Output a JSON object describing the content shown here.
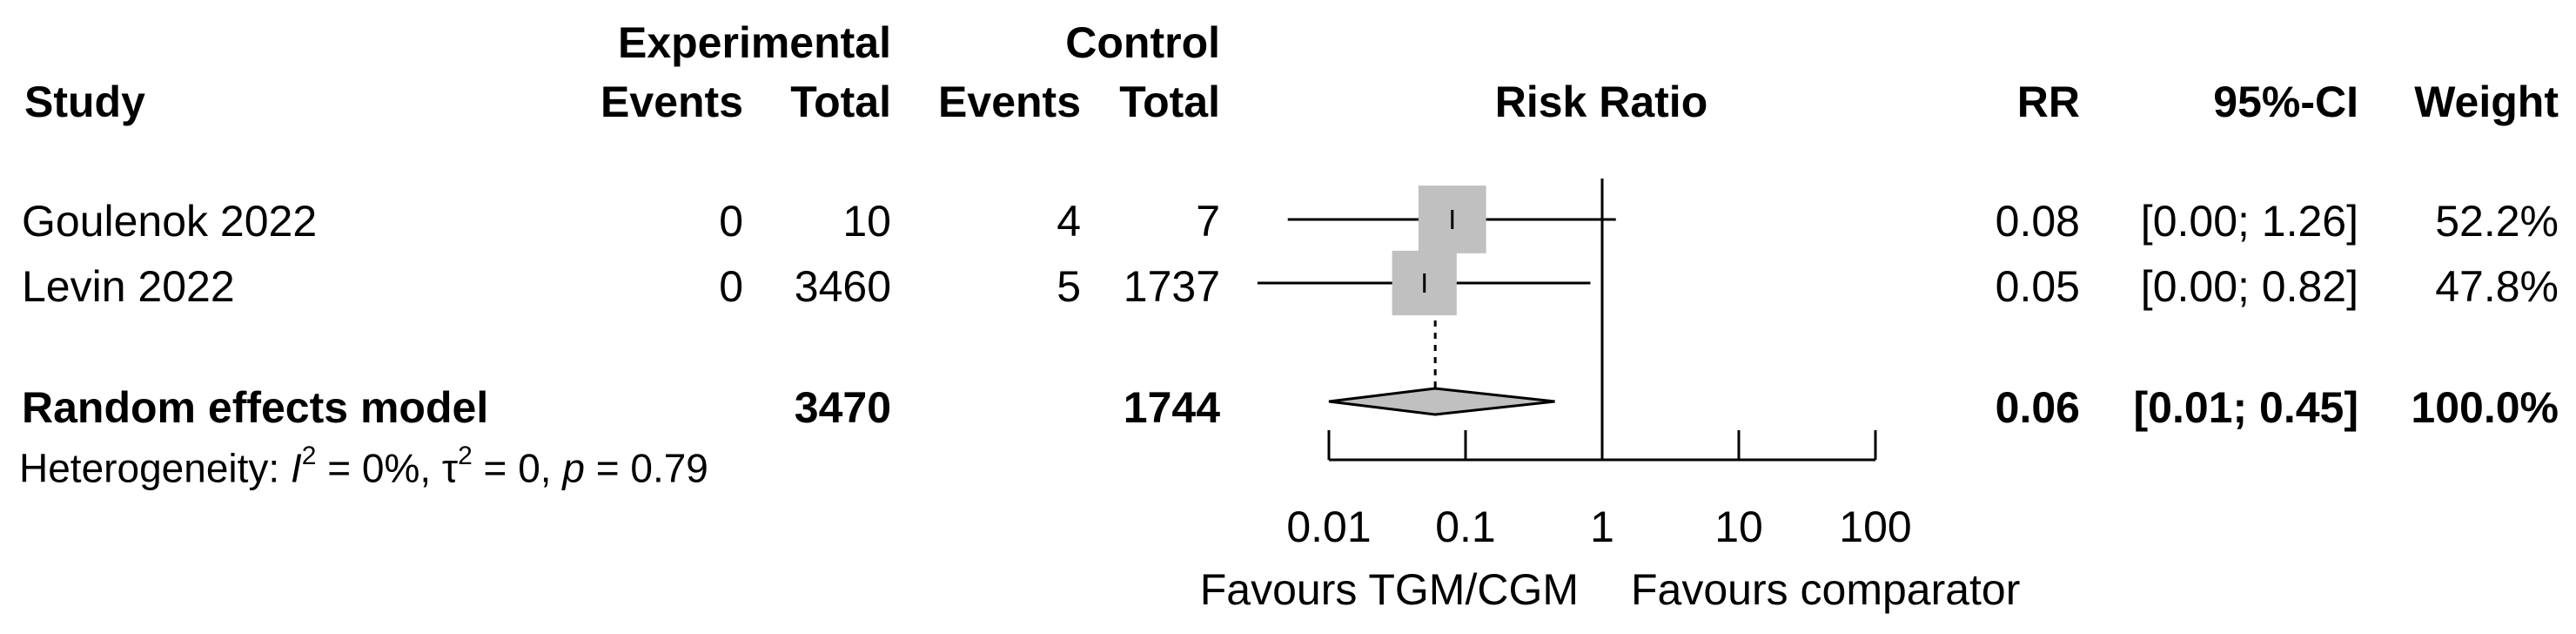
{
  "headers": {
    "study": "Study",
    "experimental": "Experimental",
    "control": "Control",
    "events": "Events",
    "total": "Total",
    "risk_ratio": "Risk Ratio",
    "rr": "RR",
    "ci": "95%-CI",
    "weight": "Weight"
  },
  "studies": [
    {
      "name": "Goulenok 2022",
      "exp_events": "0",
      "exp_total": "10",
      "ctrl_events": "4",
      "ctrl_total": "7",
      "rr": "0.08",
      "ci": "[0.00; 1.26]",
      "weight": "52.2%"
    },
    {
      "name": "Levin 2022",
      "exp_events": "0",
      "exp_total": "3460",
      "ctrl_events": "5",
      "ctrl_total": "1737",
      "rr": "0.05",
      "ci": "[0.00; 0.82]",
      "weight": "47.8%"
    }
  ],
  "pooled": {
    "label": "Random effects model",
    "exp_total": "3470",
    "ctrl_total": "1744",
    "rr": "0.06",
    "ci": "[0.01; 0.45]",
    "weight": "100.0%"
  },
  "heterogeneity": {
    "prefix": "Heterogeneity: ",
    "i_label": "I",
    "i_value": " = 0%, ",
    "tau_label": "τ",
    "tau_value": " = 0, ",
    "p_label": "p",
    "p_value": " = 0.79",
    "sup": "2"
  },
  "favours": {
    "left": "Favours TGM/CGM",
    "right": "Favours comparator"
  },
  "chart_data": {
    "type": "forest",
    "scale": "log",
    "xlim": [
      0.01,
      100
    ],
    "ticks": [
      0.01,
      0.1,
      1,
      10,
      100
    ],
    "tick_labels": [
      "0.01",
      "0.1",
      "1",
      "10",
      "100"
    ],
    "null_value": 1,
    "xlabel": "Risk Ratio",
    "studies": [
      {
        "name": "Goulenok 2022",
        "rr": 0.08,
        "lower": 0.005,
        "upper": 1.26,
        "weight": 52.2
      },
      {
        "name": "Levin 2022",
        "rr": 0.05,
        "lower": 0.003,
        "upper": 0.82,
        "weight": 47.8
      }
    ],
    "pooled": {
      "rr": 0.06,
      "lower": 0.01,
      "upper": 0.45
    },
    "colors": {
      "square": "#c0c0c0",
      "diamond": "#c0c0c0",
      "line": "#000000"
    }
  }
}
